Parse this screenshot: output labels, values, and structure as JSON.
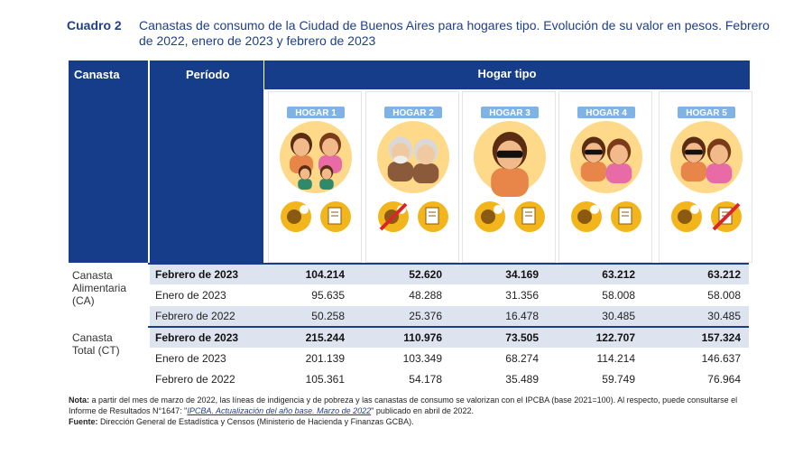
{
  "header": {
    "cuadro": "Cuadro 2",
    "title": "Canastas de consumo de la Ciudad de Buenos Aires para hogares tipo. Evolución de su valor en pesos. Febrero de 2022, enero de 2023 y febrero de 2023"
  },
  "table": {
    "col_canasta": "Canasta",
    "col_periodo": "Período",
    "col_hogar": "Hogar tipo",
    "hogares": [
      "HOGAR 1",
      "HOGAR 2",
      "HOGAR 3",
      "HOGAR 4",
      "HOGAR 5"
    ],
    "groups": [
      {
        "label": "Canasta Alimentaria (CA)",
        "label_lines": [
          "Canasta",
          "Alimentaria",
          "(CA)"
        ],
        "rows": [
          {
            "period": "Febrero de 2023",
            "values": [
              "104.214",
              "52.620",
              "34.169",
              "63.212",
              "63.212"
            ]
          },
          {
            "period": "Enero de 2023",
            "values": [
              "95.635",
              "48.288",
              "31.356",
              "58.008",
              "58.008"
            ]
          },
          {
            "period": "Febrero de 2022",
            "values": [
              "50.258",
              "25.376",
              "16.478",
              "30.485",
              "30.485"
            ]
          }
        ]
      },
      {
        "label": "Canasta Total (CT)",
        "label_lines": [
          "Canasta",
          "Total (CT)"
        ],
        "rows": [
          {
            "period": "Febrero de 2023",
            "values": [
              "215.244",
              "110.976",
              "73.505",
              "122.707",
              "157.324"
            ]
          },
          {
            "period": "Enero de 2023",
            "values": [
              "201.139",
              "103.349",
              "68.274",
              "114.214",
              "146.637"
            ]
          },
          {
            "period": "Febrero de 2022",
            "values": [
              "105.361",
              "54.178",
              "35.489",
              "59.749",
              "76.964"
            ]
          }
        ]
      }
    ]
  },
  "note": {
    "label": "Nota:",
    "text1": " a partir del mes de marzo de 2022, las líneas de indigencia y de pobreza y las canastas de consumo se valorizan con el IPCBA (base 2021=100). Al respecto, puede consultarse el Informe de Resultados N°1647: \"",
    "link": "IPCBA. Actualización del año base. Marzo de 2022",
    "text2": "\" publicado en abril de 2022.",
    "source_label": "Fuente:",
    "source_text": " Dirección General de Estadística y Censos (Ministerio de Hacienda y Finanzas GCBA)."
  },
  "colors": {
    "header_blue": "#153d8a",
    "title_blue": "#1f3f8a",
    "shade": "#dde3ef",
    "badge": "#7fb3e6",
    "icon_yellow": "#f2b51c",
    "face_bg": "#ffd98a"
  }
}
